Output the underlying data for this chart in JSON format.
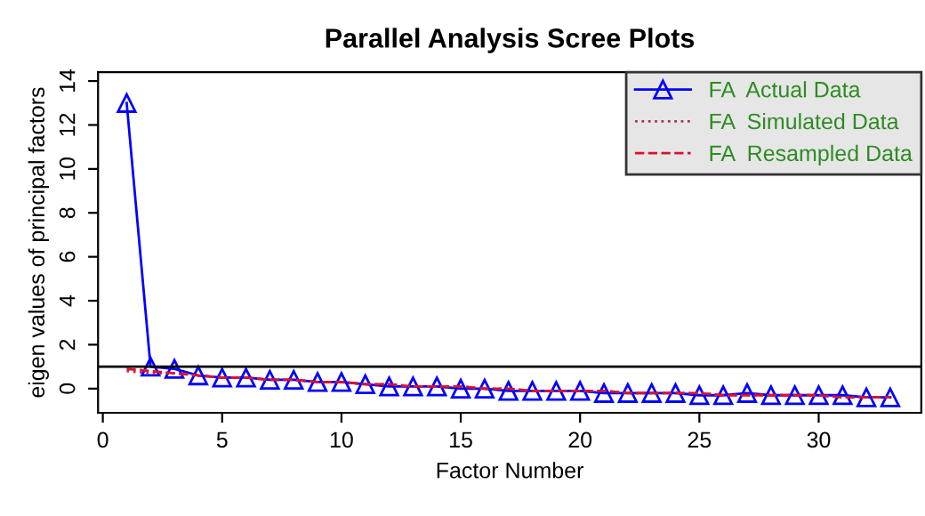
{
  "chart_data": {
    "type": "line",
    "title": "Parallel Analysis Scree Plots",
    "xlabel": "Factor Number",
    "ylabel": "eigen values of principal factors",
    "x": [
      1,
      2,
      3,
      4,
      5,
      6,
      7,
      8,
      9,
      10,
      11,
      12,
      13,
      14,
      15,
      16,
      17,
      18,
      19,
      20,
      21,
      22,
      23,
      24,
      25,
      26,
      27,
      28,
      29,
      30,
      31,
      32,
      33
    ],
    "series": [
      {
        "name": "FA  Actual Data",
        "color": "#0000ff",
        "marker": "triangle",
        "line_style": "solid",
        "values": [
          13.0,
          1.0,
          0.9,
          0.6,
          0.5,
          0.5,
          0.4,
          0.4,
          0.3,
          0.3,
          0.2,
          0.1,
          0.1,
          0.1,
          0.0,
          0.0,
          -0.1,
          -0.1,
          -0.1,
          -0.1,
          -0.2,
          -0.2,
          -0.2,
          -0.2,
          -0.3,
          -0.3,
          -0.2,
          -0.3,
          -0.3,
          -0.3,
          -0.3,
          -0.4,
          -0.4
        ]
      },
      {
        "name": "FA  Simulated Data",
        "color": "#b03060",
        "marker": "none",
        "line_style": "dotted",
        "values": [
          0.8,
          0.7,
          0.7,
          0.6,
          0.5,
          0.5,
          0.4,
          0.4,
          0.3,
          0.3,
          0.2,
          0.2,
          0.1,
          0.1,
          0.1,
          0.0,
          0.0,
          -0.1,
          -0.1,
          -0.1,
          -0.1,
          -0.2,
          -0.2,
          -0.2,
          -0.2,
          -0.3,
          -0.3,
          -0.3,
          -0.3,
          -0.3,
          -0.4,
          -0.4,
          -0.4
        ]
      },
      {
        "name": "FA  Resampled Data",
        "color": "#e0102a",
        "marker": "none",
        "line_style": "dashed",
        "values": [
          0.9,
          0.8,
          0.7,
          0.6,
          0.5,
          0.5,
          0.4,
          0.4,
          0.3,
          0.3,
          0.2,
          0.2,
          0.1,
          0.1,
          0.1,
          0.0,
          0.0,
          -0.1,
          -0.1,
          -0.1,
          -0.1,
          -0.2,
          -0.2,
          -0.2,
          -0.2,
          -0.3,
          -0.3,
          -0.3,
          -0.3,
          -0.3,
          -0.4,
          -0.4,
          -0.4
        ]
      }
    ],
    "ref_lines": [
      {
        "axis": "y",
        "value": 1,
        "color": "#000000"
      }
    ],
    "xlim": [
      -0.2,
      34.3
    ],
    "ylim": [
      -1.1,
      14.4
    ],
    "xticks": [
      0,
      5,
      10,
      15,
      20,
      25,
      30
    ],
    "yticks": [
      0,
      2,
      4,
      6,
      8,
      10,
      12,
      14
    ],
    "grid": false,
    "legend": "top right"
  }
}
